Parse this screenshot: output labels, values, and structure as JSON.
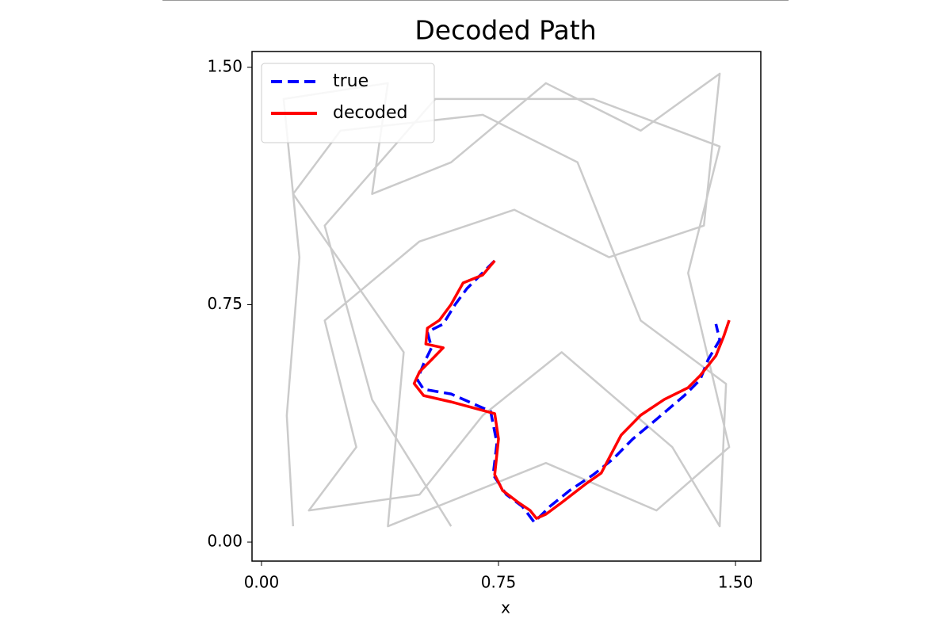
{
  "chart_data": {
    "type": "line",
    "title": "Decoded Path",
    "x_label": "x",
    "xlim": [
      -0.03,
      1.58
    ],
    "ylim": [
      -0.06,
      1.55
    ],
    "xticks": [
      {
        "value": 0,
        "label": "0.00"
      },
      {
        "value": 0.75,
        "label": "0.75"
      },
      {
        "value": 1.5,
        "label": "1.50"
      }
    ],
    "yticks": [
      {
        "value": 0,
        "label": "0.00"
      },
      {
        "value": 0.75,
        "label": "0.75"
      },
      {
        "value": 1.5,
        "label": "1.50"
      }
    ],
    "legend": "upper left",
    "series": [
      {
        "color": "#8c8c8c",
        "linestyle": "solid",
        "x": [
          0.1,
          0.08,
          0.12,
          0.07,
          0.4,
          0.35,
          0.6,
          0.9,
          1.2,
          1.45,
          1.4,
          1.1,
          0.8,
          0.5,
          0.2,
          0.3,
          0.15,
          0.5,
          0.7,
          0.95,
          1.3,
          1.45,
          1.47,
          1.2,
          1.0,
          0.7,
          0.25,
          0.1,
          0.45,
          0.4,
          0.9,
          1.25,
          1.48,
          1.35,
          1.45,
          1.05,
          0.55,
          0.2,
          0.35,
          0.6
        ],
        "values": [
          0.05,
          0.4,
          0.9,
          1.4,
          1.45,
          1.1,
          1.2,
          1.45,
          1.3,
          1.48,
          1.0,
          0.9,
          1.05,
          0.95,
          0.7,
          0.3,
          0.1,
          0.15,
          0.4,
          0.6,
          0.3,
          0.05,
          0.5,
          0.7,
          1.2,
          1.35,
          1.3,
          1.1,
          0.6,
          0.05,
          0.25,
          0.1,
          0.3,
          0.85,
          1.25,
          1.4,
          1.4,
          1.0,
          0.45,
          0.05
        ]
      },
      {
        "name": "true",
        "color": "#0000ff",
        "linestyle": "dashed",
        "x": [
          0.738,
          0.688,
          0.65,
          0.613,
          0.575,
          0.525,
          0.538,
          0.513,
          0.493,
          0.513,
          0.6,
          0.725,
          0.745,
          0.733,
          0.775,
          0.825,
          0.863,
          0.913,
          0.975,
          1.05,
          1.113,
          1.175,
          1.25,
          1.338,
          1.388,
          1.413,
          1.45,
          1.438
        ],
        "values": [
          0.889,
          0.839,
          0.801,
          0.751,
          0.689,
          0.664,
          0.614,
          0.563,
          0.513,
          0.483,
          0.468,
          0.413,
          0.313,
          0.213,
          0.15,
          0.113,
          0.063,
          0.113,
          0.163,
          0.213,
          0.263,
          0.326,
          0.388,
          0.463,
          0.513,
          0.576,
          0.639,
          0.689
        ]
      },
      {
        "name": "decoded",
        "color": "#ff0000",
        "linestyle": "solid",
        "x": [
          0.738,
          0.7,
          0.638,
          0.6,
          0.563,
          0.525,
          0.52,
          0.575,
          0.538,
          0.5,
          0.483,
          0.513,
          0.6,
          0.738,
          0.75,
          0.738,
          0.763,
          0.813,
          0.85,
          0.87,
          0.9,
          0.95,
          1.025,
          1.075,
          1.138,
          1.2,
          1.275,
          1.35,
          1.388,
          1.438,
          1.463,
          1.48
        ],
        "values": [
          0.889,
          0.844,
          0.819,
          0.751,
          0.701,
          0.676,
          0.626,
          0.614,
          0.576,
          0.538,
          0.501,
          0.463,
          0.443,
          0.406,
          0.326,
          0.213,
          0.163,
          0.125,
          0.1,
          0.075,
          0.088,
          0.125,
          0.183,
          0.218,
          0.338,
          0.401,
          0.451,
          0.488,
          0.526,
          0.589,
          0.651,
          0.701
        ]
      }
    ]
  }
}
